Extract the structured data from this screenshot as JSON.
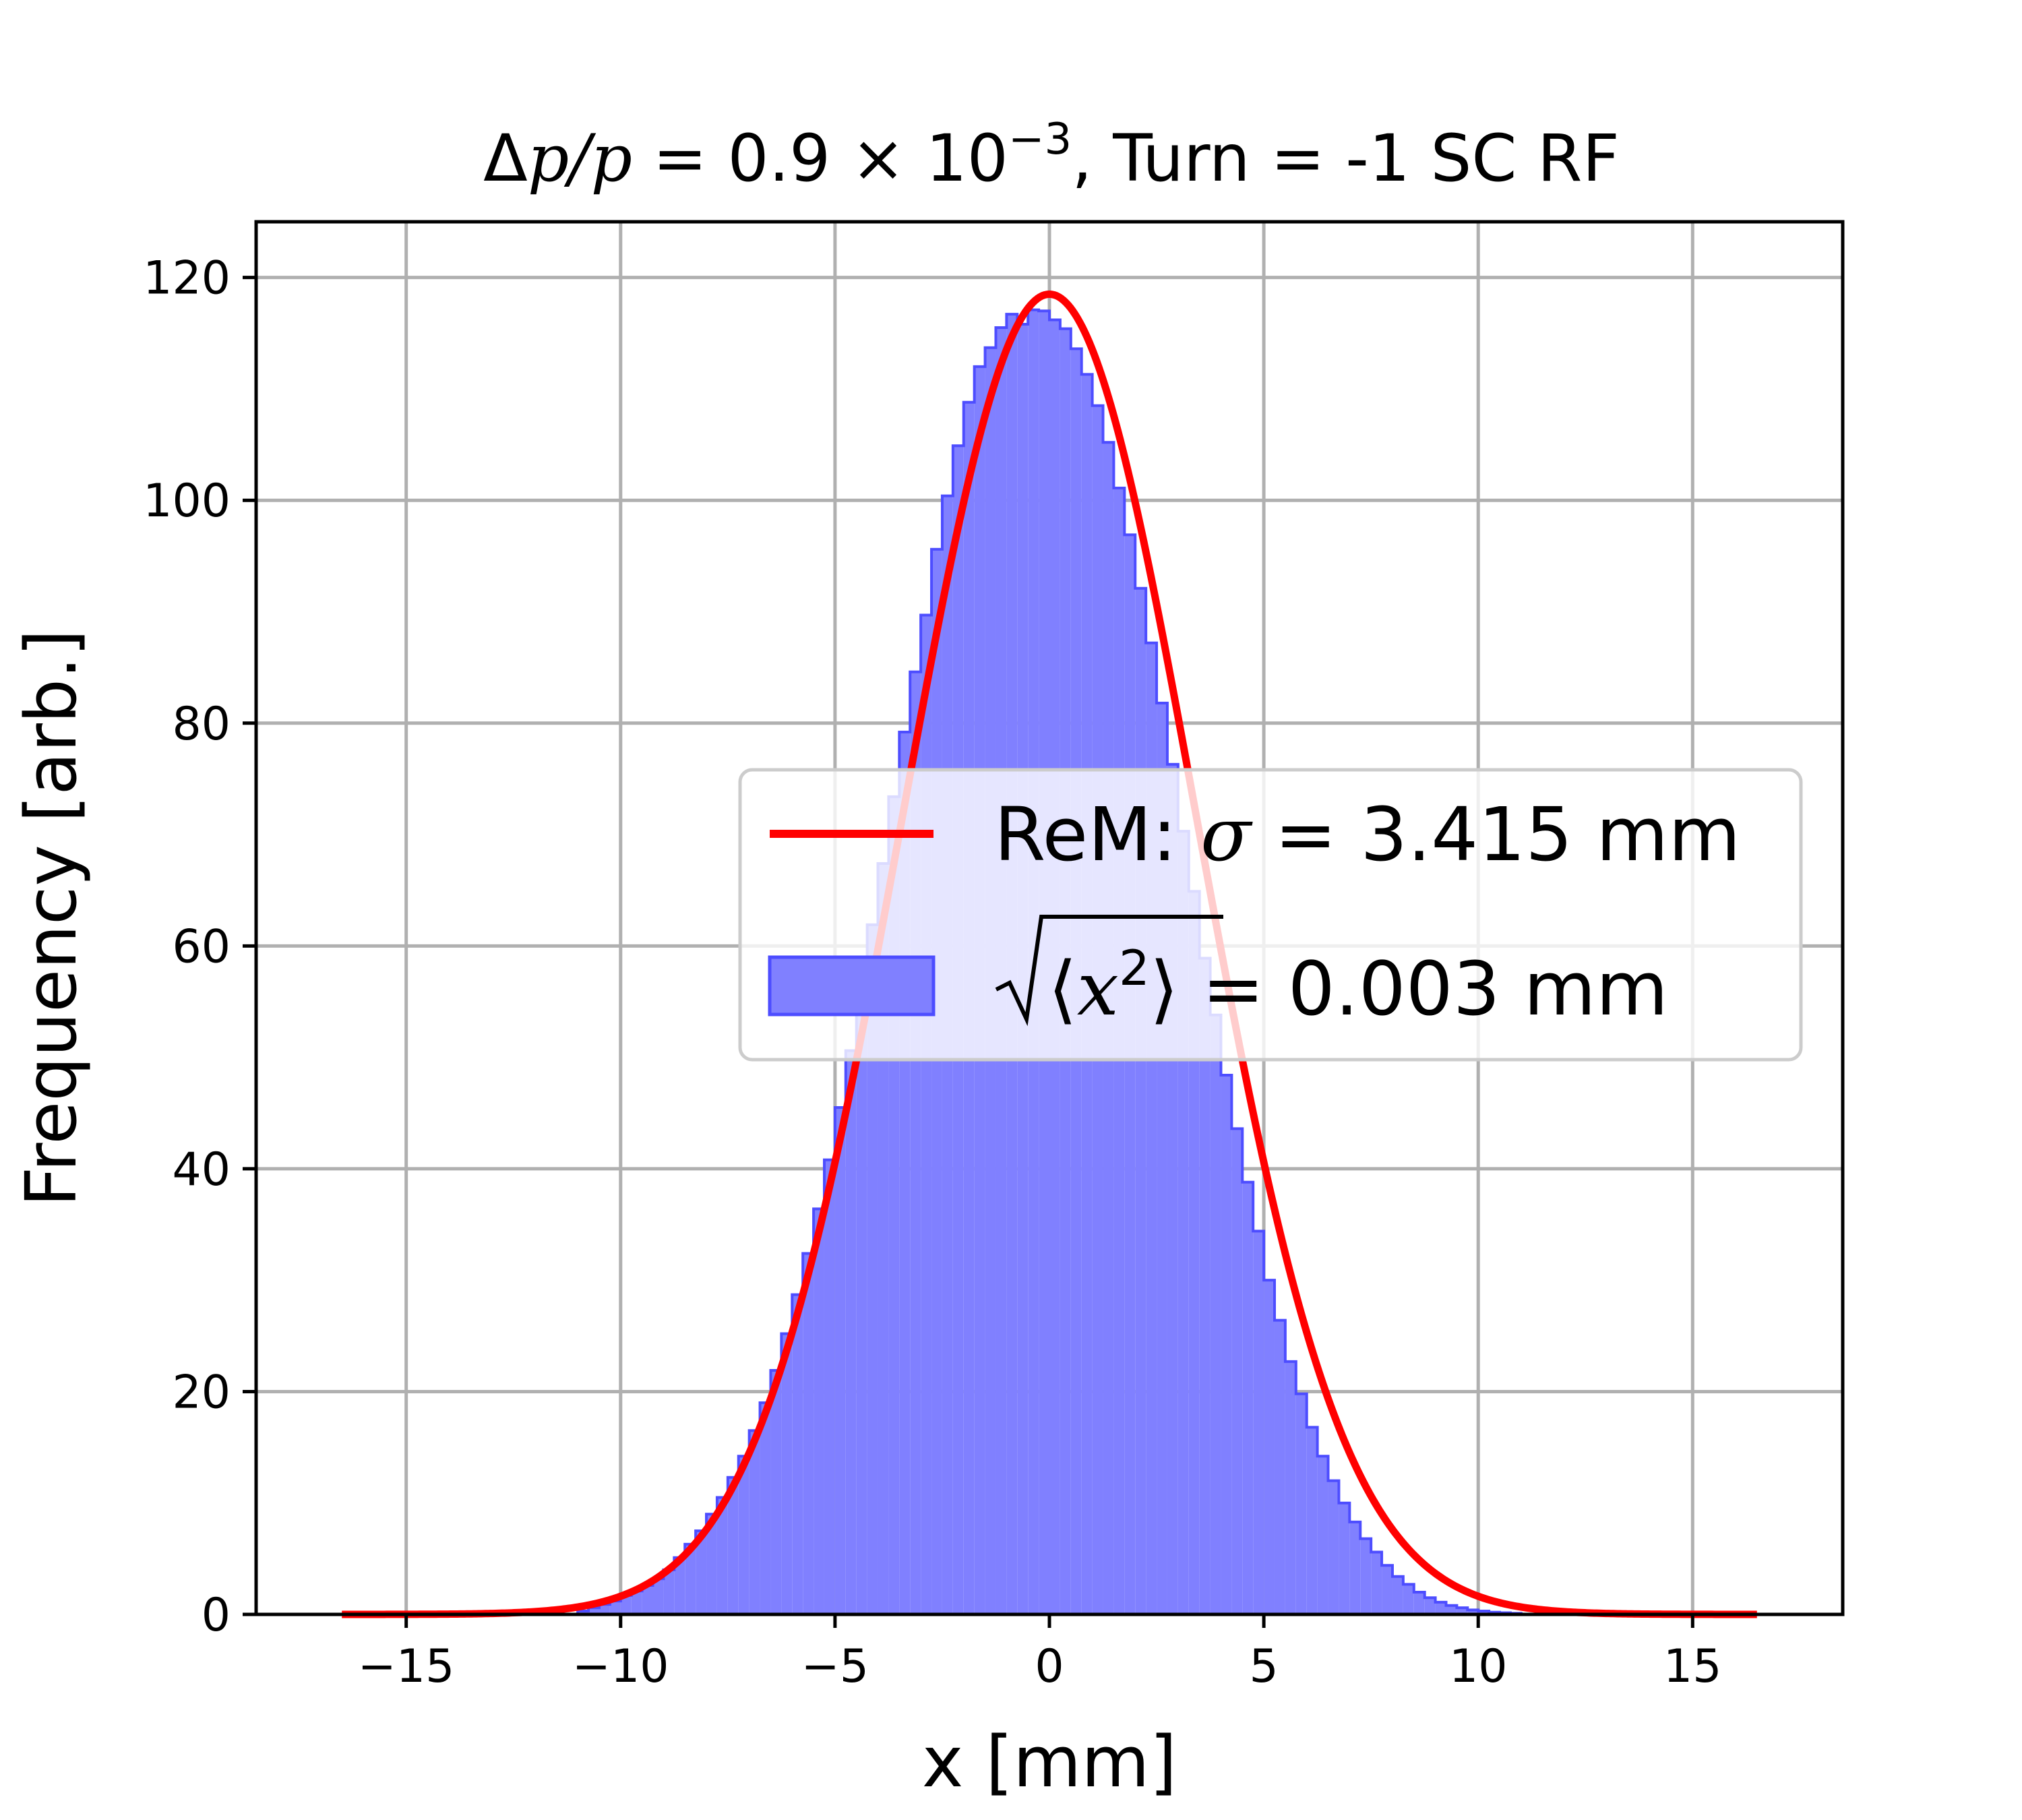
{
  "chart_data": {
    "type": "bar",
    "title": "Δp/p = 0.9 × 10⁻³, Turn = -1 SC RF",
    "title_parts": {
      "delta_p": "Δ",
      "p_over_p": "p/p",
      "value": " = 0.9 × 10",
      "exponent": "−3",
      "rest": ", Turn = -1 SC RF"
    },
    "xlabel": "x [mm]",
    "ylabel": "Frequency [arb.]",
    "xlim": [
      -18.5,
      18.5
    ],
    "ylim": [
      0,
      125
    ],
    "xticks": [
      -15,
      -10,
      -5,
      0,
      5,
      10,
      15
    ],
    "xtick_labels": [
      "−15",
      "−10",
      "−5",
      "0",
      "5",
      "10",
      "15"
    ],
    "yticks": [
      0,
      20,
      40,
      60,
      80,
      100,
      120
    ],
    "ytick_labels": [
      "0",
      "20",
      "40",
      "60",
      "80",
      "100",
      "120"
    ],
    "grid": true,
    "legend_position": "center-right",
    "colors": {
      "fit_line": "#ff0000",
      "hist_fill": "#8080ff",
      "hist_edge": "#4d4dff"
    },
    "series": [
      {
        "name": "ReM: σ = 3.415 mm",
        "name_parts": {
          "prefix": "ReM: ",
          "symbol": "σ",
          "rest": " = 3.415 mm"
        },
        "kind": "line",
        "model": "gaussian",
        "amplitude": 118.5,
        "mean": 0,
        "sigma": 3.415,
        "x_range": [
          -16.5,
          16.5
        ]
      },
      {
        "name": "√⟨x²⟩ = 0.003 mm",
        "name_parts": {
          "open": "⟨",
          "var": "x",
          "sup": "2",
          "close": "⟩",
          "rest": " = 0.003 mm"
        },
        "kind": "histogram",
        "bin_width": 0.25,
        "x": [
          -11.0,
          -10.75,
          -10.5,
          -10.25,
          -10.0,
          -9.75,
          -9.5,
          -9.25,
          -9.0,
          -8.75,
          -8.5,
          -8.25,
          -8.0,
          -7.75,
          -7.5,
          -7.25,
          -7.0,
          -6.75,
          -6.5,
          -6.25,
          -6.0,
          -5.75,
          -5.5,
          -5.25,
          -5.0,
          -4.75,
          -4.5,
          -4.25,
          -4.0,
          -3.75,
          -3.5,
          -3.25,
          -3.0,
          -2.75,
          -2.5,
          -2.25,
          -2.0,
          -1.75,
          -1.5,
          -1.25,
          -1.0,
          -0.75,
          -0.5,
          -0.25,
          0.0,
          0.25,
          0.5,
          0.75,
          1.0,
          1.25,
          1.5,
          1.75,
          2.0,
          2.25,
          2.5,
          2.75,
          3.0,
          3.25,
          3.5,
          3.75,
          4.0,
          4.25,
          4.5,
          4.75,
          5.0,
          5.25,
          5.5,
          5.75,
          6.0,
          6.25,
          6.5,
          6.75,
          7.0,
          7.25,
          7.5,
          7.75,
          8.0,
          8.25,
          8.5,
          8.75,
          9.0,
          9.25,
          9.5,
          9.75,
          10.0,
          10.25,
          10.5,
          10.75
        ],
        "values": [
          0.3,
          0.6,
          0.9,
          1.2,
          1.7,
          2.1,
          2.6,
          3.2,
          4.0,
          5.1,
          6.3,
          7.5,
          9.0,
          10.5,
          12.3,
          14.2,
          16.5,
          19.0,
          21.9,
          25.2,
          28.7,
          32.4,
          36.4,
          40.8,
          45.5,
          50.6,
          56.1,
          61.9,
          67.4,
          73.4,
          79.2,
          84.6,
          89.7,
          95.6,
          100.4,
          104.9,
          108.8,
          112.0,
          113.7,
          115.5,
          116.7,
          115.8,
          117.1,
          117.0,
          116.2,
          115.4,
          113.6,
          111.3,
          108.5,
          105.2,
          101.1,
          96.9,
          92.1,
          87.2,
          81.8,
          76.3,
          70.3,
          64.9,
          58.9,
          53.8,
          48.4,
          43.6,
          38.8,
          34.4,
          30.0,
          26.4,
          22.7,
          19.8,
          16.8,
          14.2,
          12.0,
          10.0,
          8.3,
          6.8,
          5.6,
          4.4,
          3.4,
          2.7,
          2.0,
          1.5,
          1.1,
          0.8,
          0.6,
          0.4,
          0.3,
          0.2,
          0.15,
          0.1
        ]
      }
    ]
  }
}
